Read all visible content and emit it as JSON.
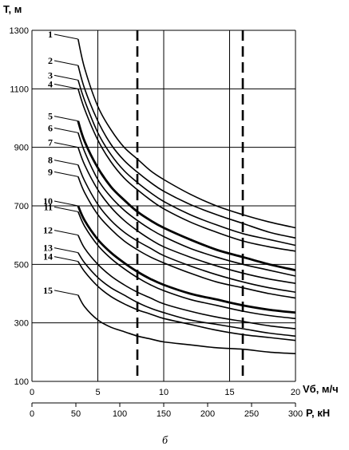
{
  "chart_data": {
    "type": "line",
    "ylabel": "T, м",
    "xlabel": "Vб, м/ч",
    "x2label": "P, кН",
    "caption": "б",
    "ylim": [
      100,
      1300
    ],
    "xlim": [
      0,
      20
    ],
    "x2lim": [
      0,
      300
    ],
    "yticks": [
      "100",
      "300",
      "500",
      "700",
      "900",
      "1100",
      "1300"
    ],
    "xticks": [
      "0",
      "5",
      "10",
      "15",
      "20"
    ],
    "x2ticks": [
      "0",
      "50",
      "100",
      "150",
      "200",
      "250",
      "300"
    ],
    "grid": true,
    "vlines_dashed": [
      8,
      16
    ],
    "x": [
      3.5,
      4,
      5,
      6,
      7,
      8,
      9,
      10,
      12,
      14,
      16,
      18,
      20
    ],
    "series": [
      {
        "name": "1",
        "bold": false,
        "values": [
          1270,
          1170,
          1040,
          960,
          900,
          860,
          820,
          790,
          740,
          700,
          670,
          645,
          625
        ]
      },
      {
        "name": "2",
        "bold": false,
        "values": [
          1180,
          1100,
          990,
          910,
          855,
          815,
          780,
          750,
          705,
          670,
          640,
          610,
          590
        ]
      },
      {
        "name": "3",
        "bold": false,
        "values": [
          1130,
          1060,
          950,
          875,
          820,
          780,
          745,
          715,
          670,
          635,
          605,
          585,
          565
        ]
      },
      {
        "name": "4",
        "bold": false,
        "values": [
          1100,
          1030,
          925,
          850,
          795,
          755,
          720,
          690,
          645,
          610,
          580,
          560,
          545
        ]
      },
      {
        "name": "5",
        "bold": true,
        "values": [
          990,
          920,
          830,
          765,
          720,
          680,
          650,
          625,
          585,
          550,
          525,
          500,
          480
        ]
      },
      {
        "name": "6",
        "bold": false,
        "values": [
          950,
          885,
          790,
          730,
          685,
          650,
          620,
          595,
          555,
          525,
          500,
          480,
          460
        ]
      },
      {
        "name": "7",
        "bold": false,
        "values": [
          900,
          840,
          755,
          695,
          650,
          615,
          585,
          560,
          525,
          495,
          470,
          450,
          435
        ]
      },
      {
        "name": "8",
        "bold": false,
        "values": [
          840,
          785,
          705,
          650,
          610,
          580,
          555,
          530,
          495,
          465,
          440,
          420,
          405
        ]
      },
      {
        "name": "9",
        "bold": false,
        "values": [
          800,
          745,
          670,
          620,
          580,
          550,
          525,
          505,
          470,
          440,
          420,
          400,
          385
        ]
      },
      {
        "name": "10",
        "bold": true,
        "values": [
          700,
          650,
          585,
          540,
          505,
          475,
          450,
          430,
          400,
          380,
          360,
          345,
          335
        ]
      },
      {
        "name": "11",
        "bold": false,
        "values": [
          680,
          630,
          565,
          520,
          485,
          455,
          430,
          410,
          380,
          360,
          340,
          325,
          315
        ]
      },
      {
        "name": "12",
        "bold": false,
        "values": [
          600,
          555,
          500,
          460,
          430,
          405,
          385,
          365,
          340,
          320,
          305,
          290,
          280
        ]
      },
      {
        "name": "13",
        "bold": false,
        "values": [
          540,
          505,
          455,
          420,
          395,
          370,
          350,
          335,
          310,
          295,
          280,
          265,
          255
        ]
      },
      {
        "name": "14",
        "bold": false,
        "values": [
          510,
          475,
          425,
          390,
          365,
          345,
          330,
          315,
          295,
          275,
          260,
          250,
          240
        ]
      },
      {
        "name": "15",
        "bold": false,
        "values": [
          395,
          355,
          310,
          285,
          270,
          255,
          245,
          235,
          225,
          215,
          210,
          200,
          195
        ]
      }
    ]
  }
}
